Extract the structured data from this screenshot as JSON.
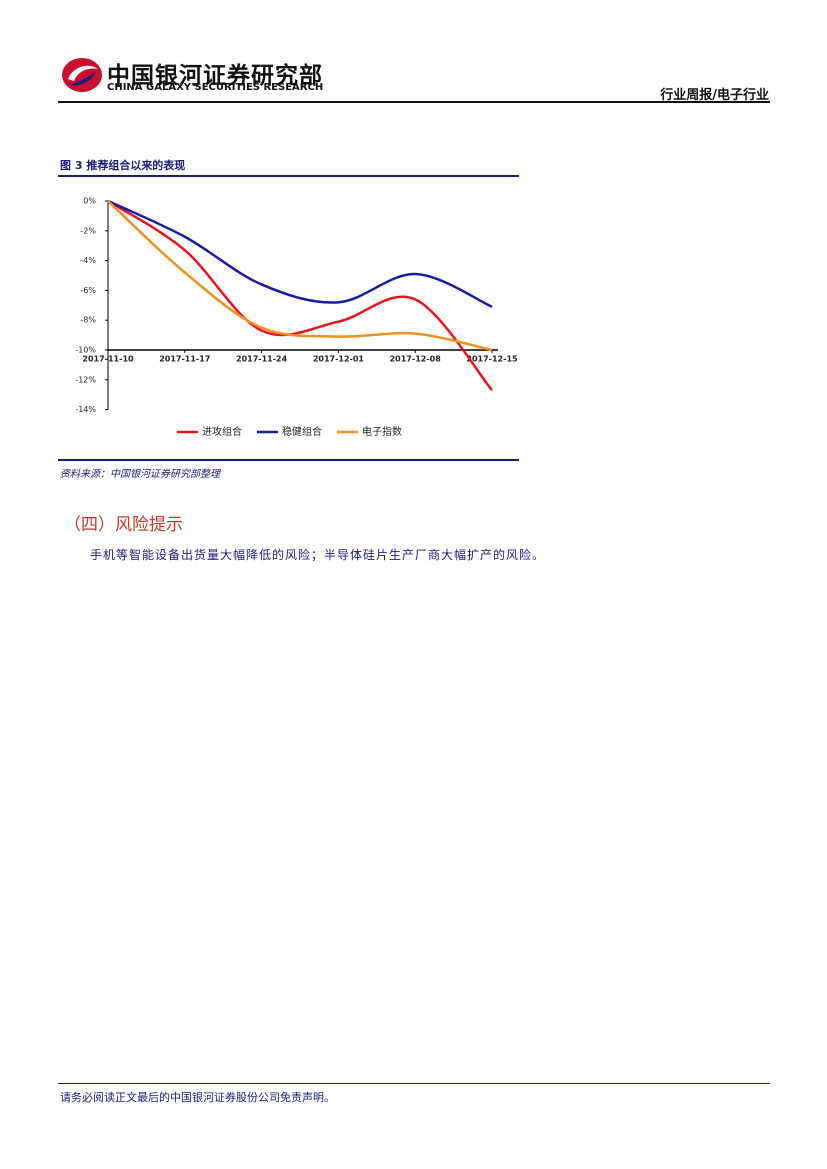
{
  "header": {
    "brand_cn": "中国银河证券研究部",
    "brand_en": "CHINA GALAXY SECURITIES RESEARCH",
    "report_kind": "行业周报/电子行业"
  },
  "chart_data": {
    "type": "line",
    "title": "图 3 推荐组合以来的表现",
    "categories": [
      "2017-11-10",
      "2017-11-17",
      "2017-11-24",
      "2017-12-01",
      "2017-12-08",
      "2017-12-15"
    ],
    "series": [
      {
        "name": "进攻组合",
        "color": "#e8141b",
        "values": [
          0,
          -3.3,
          -8.7,
          -8.1,
          -6.6,
          -12.7
        ]
      },
      {
        "name": "稳健组合",
        "color": "#1a1aa6",
        "values": [
          0,
          -2.4,
          -5.6,
          -6.8,
          -4.9,
          -7.1
        ]
      },
      {
        "name": "电子指数",
        "color": "#f0901e",
        "values": [
          0,
          -4.8,
          -8.5,
          -9.1,
          -8.9,
          -10.0
        ]
      }
    ],
    "ylim": [
      -14,
      0
    ],
    "yticks": [
      {
        "value": 0,
        "label": "0%"
      },
      {
        "value": -2,
        "label": "-2%"
      },
      {
        "value": -4,
        "label": "-4%"
      },
      {
        "value": -6,
        "label": "-6%"
      },
      {
        "value": -8,
        "label": "-8%"
      },
      {
        "value": -10,
        "label": "-10%"
      },
      {
        "value": -12,
        "label": "-12%"
      },
      {
        "value": -14,
        "label": "-14%"
      }
    ],
    "xaxis_crosses": -10,
    "smooth": true,
    "legend": "bottom",
    "grid": false
  },
  "source": "资料来源：中国银河证券研究部整理",
  "section": {
    "heading": "（四）风险提示",
    "paragraph": "手机等智能设备出货量大幅降低的风险；半导体硅片生产厂商大幅扩产的风险。"
  },
  "footer": "请务必阅读正文最后的中国银河证券股份公司免责声明。"
}
